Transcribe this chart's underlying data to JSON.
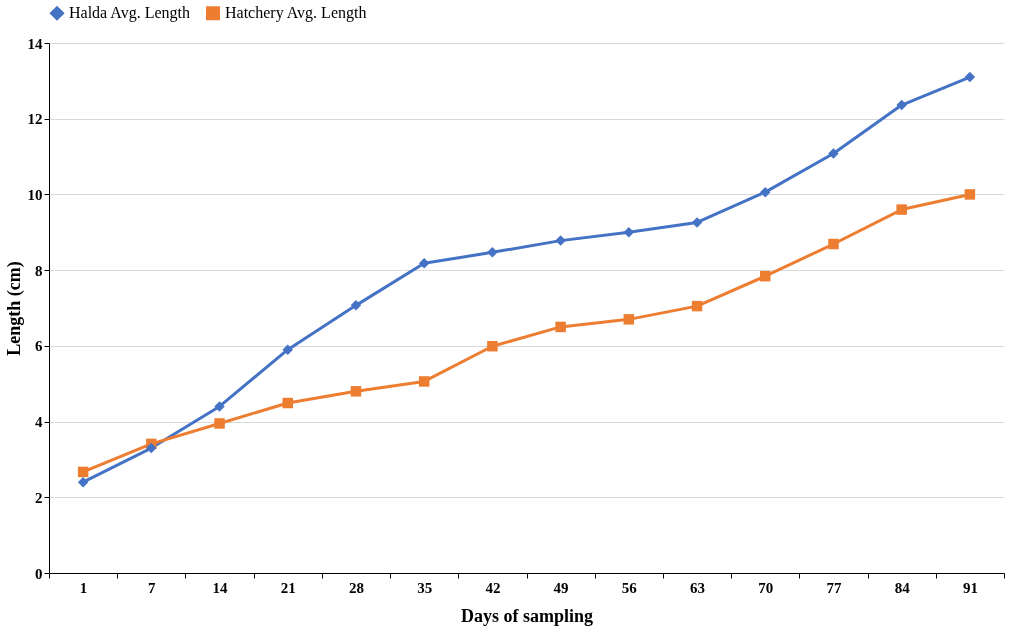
{
  "chart_data": {
    "type": "line",
    "xlabel": "Days of sampling",
    "ylabel": "Length (cm)",
    "categories": [
      "1",
      "7",
      "14",
      "21",
      "28",
      "35",
      "42",
      "49",
      "56",
      "63",
      "70",
      "77",
      "84",
      "91"
    ],
    "series": [
      {
        "name": "Halda Avg. Length",
        "color": "#4472c4",
        "marker": "diamond",
        "values": [
          2.4,
          3.3,
          4.4,
          5.9,
          7.07,
          8.18,
          8.47,
          8.78,
          9.0,
          9.26,
          10.06,
          11.08,
          12.36,
          13.1
        ]
      },
      {
        "name": "Hatchery Avg. Length",
        "color": "#ed7d31",
        "marker": "square",
        "values": [
          2.67,
          3.41,
          3.95,
          4.49,
          4.8,
          5.06,
          5.99,
          6.5,
          6.7,
          7.05,
          7.84,
          8.69,
          9.6,
          10.0
        ]
      }
    ],
    "ylim": [
      0,
      14
    ],
    "yticks": [
      0,
      2,
      4,
      6,
      8,
      10,
      12,
      14
    ],
    "grid": "y",
    "legend": "top",
    "line_style": "solid"
  }
}
